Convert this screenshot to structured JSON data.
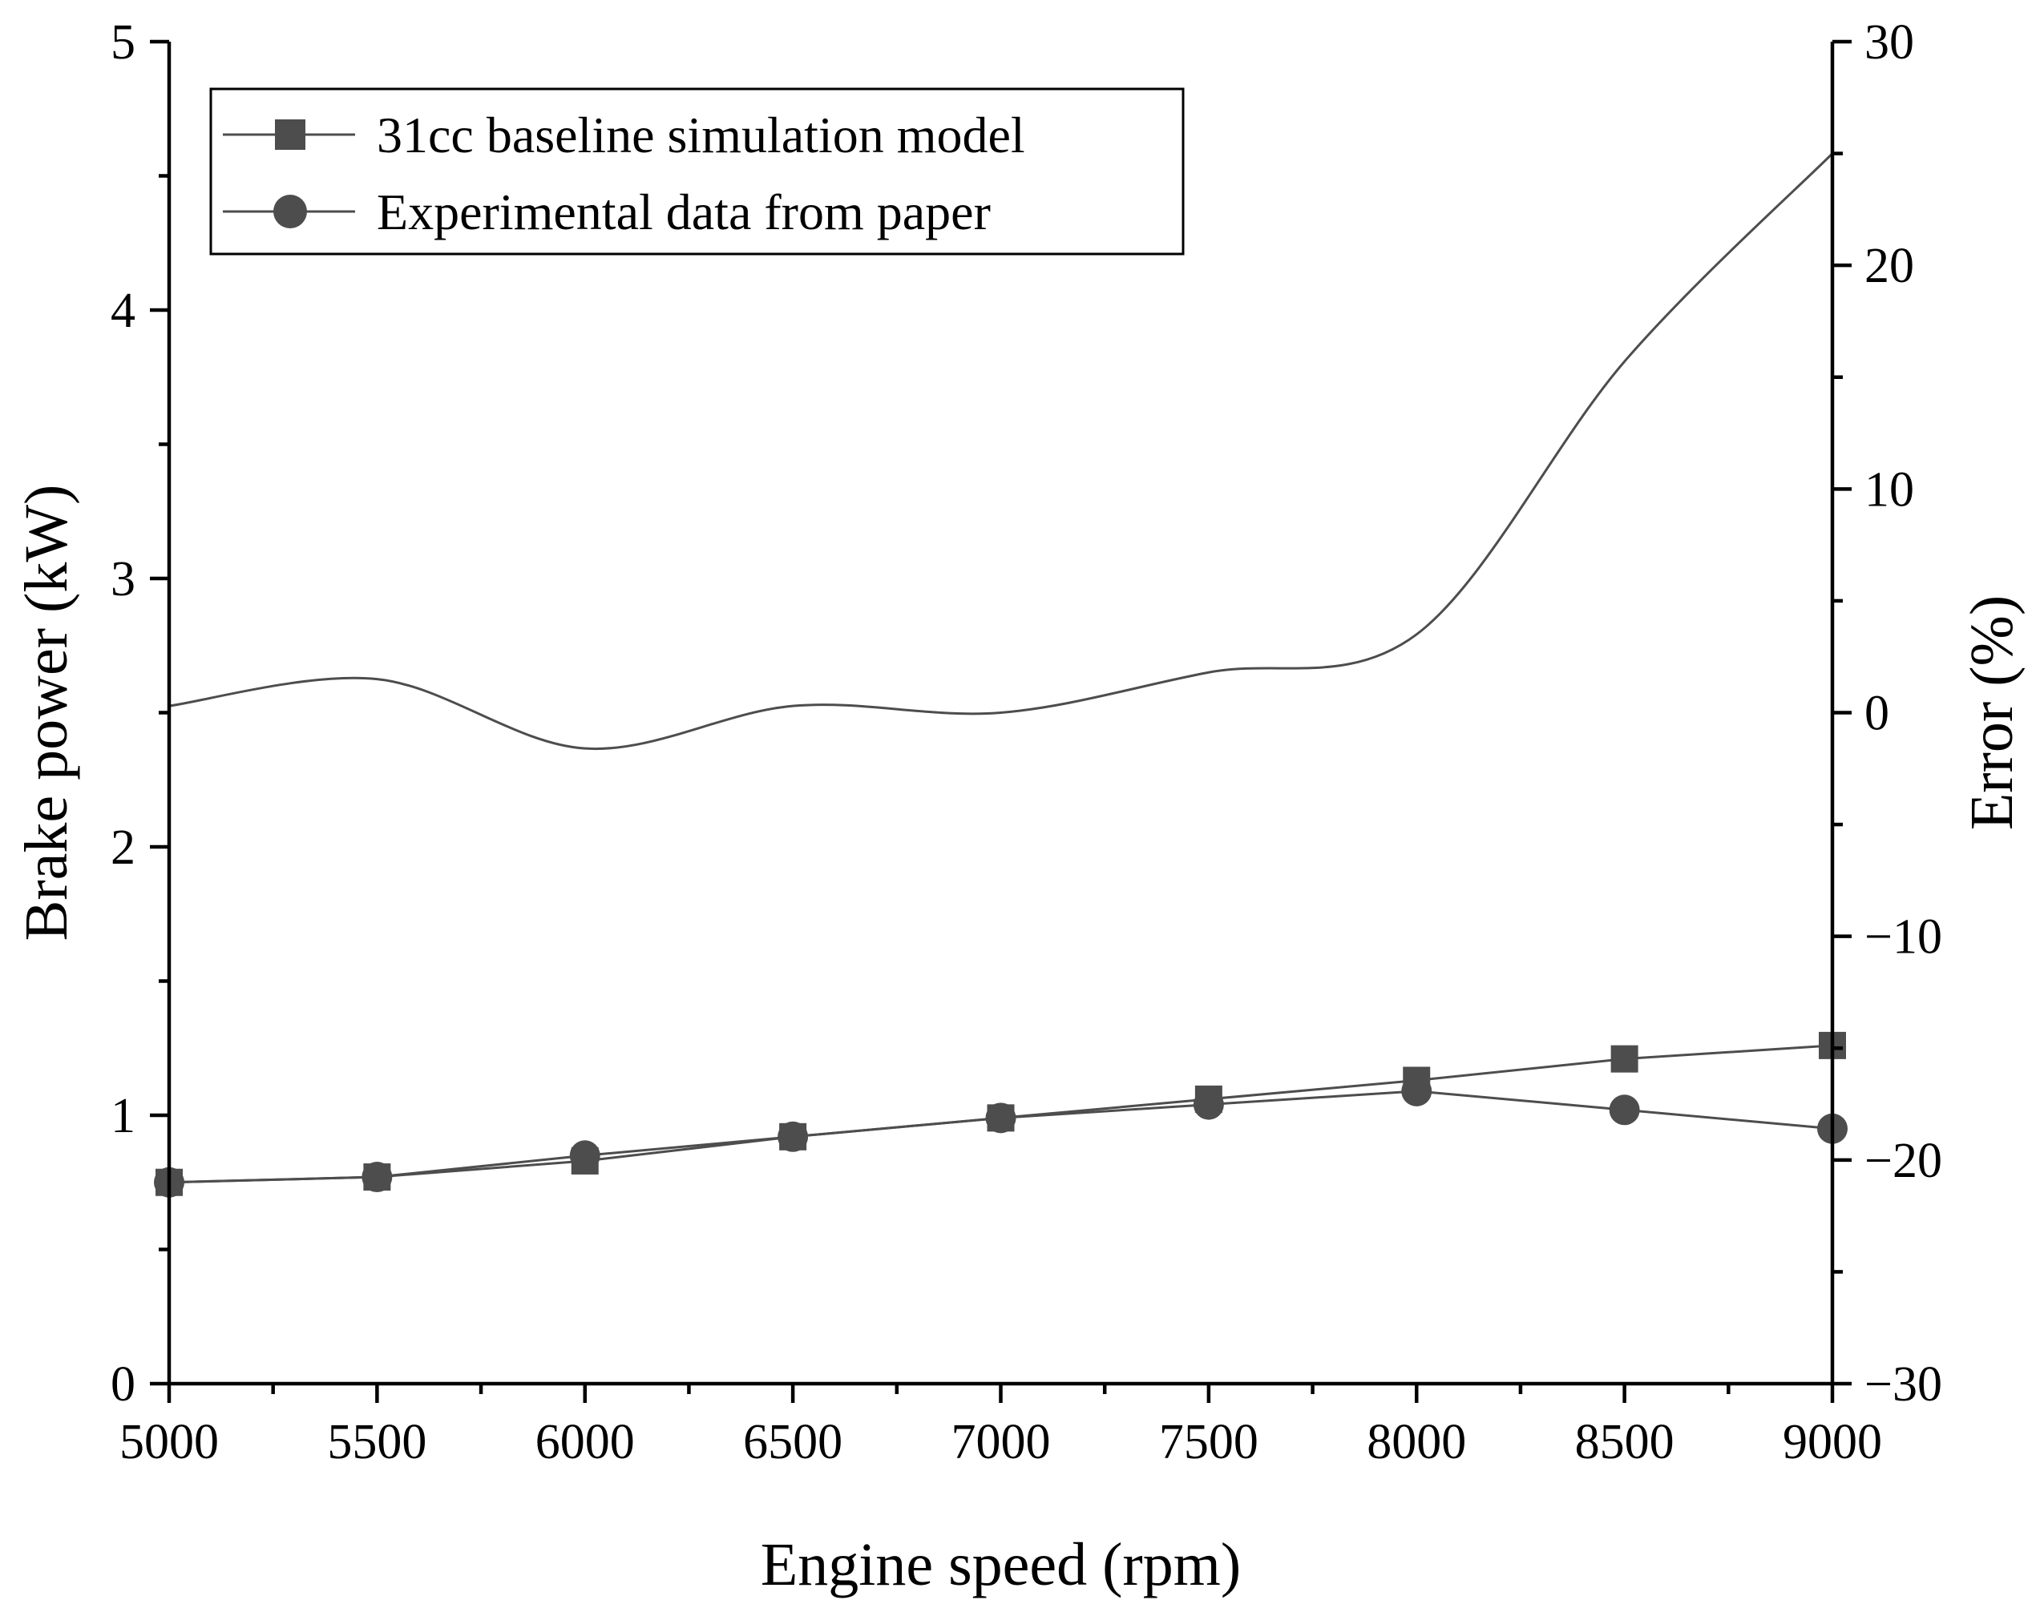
{
  "chart_data": {
    "type": "line",
    "title": "",
    "xlabel": "Engine speed (rpm)",
    "ylabel": "Brake power (kW)",
    "y2label": "Error (%)",
    "xlim": [
      5000,
      9000
    ],
    "ylim": [
      0,
      5
    ],
    "y2lim": [
      -30,
      30
    ],
    "x_ticks": [
      5000,
      5500,
      6000,
      6500,
      7000,
      7500,
      8000,
      8500,
      9000
    ],
    "x_tick_labels": [
      "5000",
      "5500",
      "6000",
      "6500",
      "7000",
      "7500",
      "8000",
      "8500",
      "9000"
    ],
    "y_ticks": [
      0,
      1,
      2,
      3,
      4,
      5
    ],
    "y_tick_labels": [
      "0",
      "1",
      "2",
      "3",
      "4",
      "5"
    ],
    "y2_ticks": [
      -30,
      -20,
      -10,
      0,
      10,
      20,
      30
    ],
    "y2_tick_labels": [
      "-30",
      "-20",
      "-10",
      "0",
      "10",
      "20",
      "30"
    ],
    "grid": false,
    "legend_position": "top-left",
    "x": [
      5000,
      5500,
      6000,
      6500,
      7000,
      7500,
      8000,
      8500,
      9000
    ],
    "series": [
      {
        "name": "31cc baseline simulation model",
        "axis": "left",
        "marker": "square",
        "values": [
          0.75,
          0.77,
          0.83,
          0.92,
          0.99,
          1.06,
          1.13,
          1.21,
          1.26
        ]
      },
      {
        "name": "Experimental data from paper",
        "axis": "left",
        "marker": "circle",
        "values": [
          0.75,
          0.77,
          0.85,
          0.92,
          0.99,
          1.04,
          1.09,
          1.02,
          0.95
        ]
      },
      {
        "name": "Error",
        "axis": "right",
        "marker": "none",
        "smooth": true,
        "values": [
          0.3,
          1.5,
          -1.6,
          0.3,
          0.0,
          1.8,
          3.5,
          15.7,
          25.0
        ]
      }
    ],
    "colors": {
      "series": "#4d4d4d",
      "axis": "#000000"
    }
  }
}
